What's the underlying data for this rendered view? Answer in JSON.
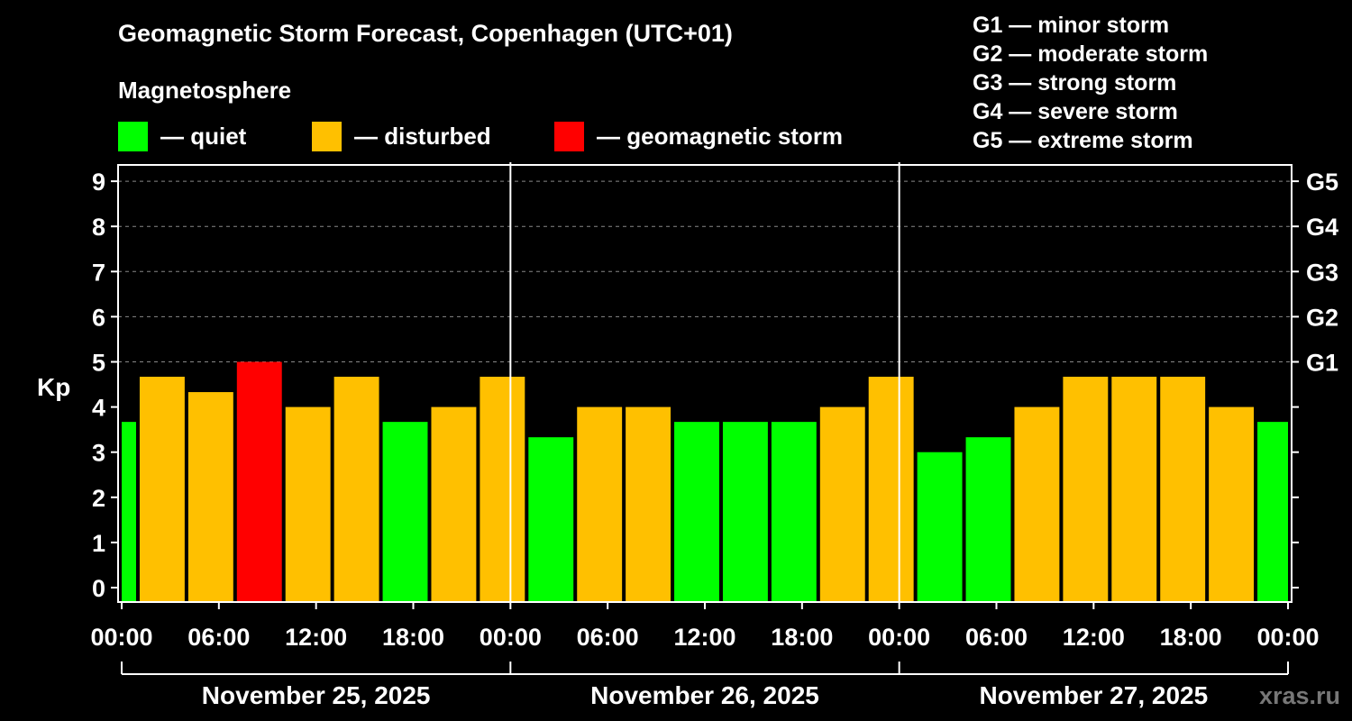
{
  "title": "Geomagnetic Storm Forecast, Copenhagen (UTC+01)",
  "magnetosphere_label": "Magnetosphere",
  "legend": [
    {
      "label": "— quiet",
      "color": "#00ff00"
    },
    {
      "label": "— disturbed",
      "color": "#ffc000"
    },
    {
      "label": "— geomagnetic storm",
      "color": "#ff0000"
    }
  ],
  "storm_levels": [
    "G1 — minor storm",
    "G2 — moderate storm",
    "G3 — strong storm",
    "G4 — severe storm",
    "G5 — extreme storm"
  ],
  "watermark": "xras.ru",
  "chart_data": {
    "type": "bar",
    "title": "Geomagnetic Storm Forecast, Copenhagen (UTC+01)",
    "ylabel": "Kp",
    "ylim": [
      0,
      9
    ],
    "yticks": [
      "0",
      "1",
      "2",
      "3",
      "4",
      "5",
      "6",
      "7",
      "8",
      "9"
    ],
    "right_ticks": [
      {
        "kp": 5,
        "label": "G1"
      },
      {
        "kp": 6,
        "label": "G2"
      },
      {
        "kp": 7,
        "label": "G3"
      },
      {
        "kp": 8,
        "label": "G4"
      },
      {
        "kp": 9,
        "label": "G5"
      }
    ],
    "xtick_labels": [
      "00:00",
      "06:00",
      "12:00",
      "18:00",
      "00:00",
      "06:00",
      "12:00",
      "18:00",
      "00:00",
      "06:00",
      "12:00",
      "18:00",
      "00:00"
    ],
    "days": [
      "November 25, 2025",
      "November 26, 2025",
      "November 27, 2025"
    ],
    "hours_total": 72,
    "bars": [
      {
        "start": 0,
        "end": 1,
        "kp": 3.67,
        "level": "quiet"
      },
      {
        "start": 1,
        "end": 4,
        "kp": 4.67,
        "level": "disturbed"
      },
      {
        "start": 4,
        "end": 7,
        "kp": 4.33,
        "level": "disturbed"
      },
      {
        "start": 7,
        "end": 10,
        "kp": 5.0,
        "level": "storm"
      },
      {
        "start": 10,
        "end": 13,
        "kp": 4.0,
        "level": "disturbed"
      },
      {
        "start": 13,
        "end": 16,
        "kp": 4.67,
        "level": "disturbed"
      },
      {
        "start": 16,
        "end": 19,
        "kp": 3.67,
        "level": "quiet"
      },
      {
        "start": 19,
        "end": 22,
        "kp": 4.0,
        "level": "disturbed"
      },
      {
        "start": 22,
        "end": 25,
        "kp": 4.67,
        "level": "disturbed"
      },
      {
        "start": 25,
        "end": 28,
        "kp": 3.33,
        "level": "quiet"
      },
      {
        "start": 28,
        "end": 31,
        "kp": 4.0,
        "level": "disturbed"
      },
      {
        "start": 31,
        "end": 34,
        "kp": 4.0,
        "level": "disturbed"
      },
      {
        "start": 34,
        "end": 37,
        "kp": 3.67,
        "level": "quiet"
      },
      {
        "start": 37,
        "end": 40,
        "kp": 3.67,
        "level": "quiet"
      },
      {
        "start": 40,
        "end": 43,
        "kp": 3.67,
        "level": "quiet"
      },
      {
        "start": 43,
        "end": 46,
        "kp": 4.0,
        "level": "disturbed"
      },
      {
        "start": 46,
        "end": 49,
        "kp": 4.67,
        "level": "disturbed"
      },
      {
        "start": 49,
        "end": 52,
        "kp": 3.0,
        "level": "quiet"
      },
      {
        "start": 52,
        "end": 55,
        "kp": 3.33,
        "level": "quiet"
      },
      {
        "start": 55,
        "end": 58,
        "kp": 4.0,
        "level": "disturbed"
      },
      {
        "start": 58,
        "end": 61,
        "kp": 4.67,
        "level": "disturbed"
      },
      {
        "start": 61,
        "end": 64,
        "kp": 4.67,
        "level": "disturbed"
      },
      {
        "start": 64,
        "end": 67,
        "kp": 4.67,
        "level": "disturbed"
      },
      {
        "start": 67,
        "end": 70,
        "kp": 4.0,
        "level": "disturbed"
      },
      {
        "start": 70,
        "end": 72,
        "kp": 3.67,
        "level": "quiet"
      }
    ],
    "level_colors": {
      "quiet": "#00ff00",
      "disturbed": "#ffc000",
      "storm": "#ff0000"
    }
  }
}
